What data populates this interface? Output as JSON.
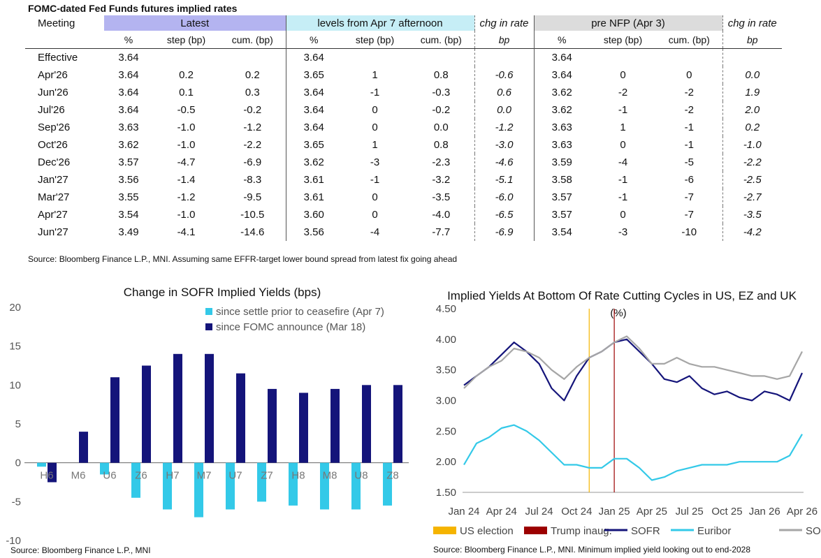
{
  "table": {
    "title": "FOMC-dated Fed Funds futures implied rates",
    "group_headers": {
      "meeting": "Meeting",
      "latest": "Latest",
      "levels": "levels from Apr 7 afternoon",
      "chg1": "chg in rate",
      "pre": "pre NFP (Apr 3)",
      "chg2": "chg in rate"
    },
    "sub_headers": [
      "%",
      "step (bp)",
      "cum. (bp)",
      "%",
      "step (bp)",
      "cum. (bp)",
      "bp",
      "%",
      "step (bp)",
      "cum. (bp)",
      "bp"
    ],
    "rows": [
      [
        "Effective",
        "3.64",
        "",
        "",
        "3.64",
        "",
        "",
        "",
        "3.64",
        "",
        "",
        ""
      ],
      [
        "Apr'26",
        "3.64",
        "0.2",
        "0.2",
        "3.65",
        "1",
        "0.8",
        "-0.6",
        "3.64",
        "0",
        "0",
        "0.0"
      ],
      [
        "Jun'26",
        "3.64",
        "0.1",
        "0.3",
        "3.64",
        "-1",
        "-0.3",
        "0.6",
        "3.62",
        "-2",
        "-2",
        "1.9"
      ],
      [
        "Jul'26",
        "3.64",
        "-0.5",
        "-0.2",
        "3.64",
        "0",
        "-0.2",
        "0.0",
        "3.62",
        "-1",
        "-2",
        "2.0"
      ],
      [
        "Sep'26",
        "3.63",
        "-1.0",
        "-1.2",
        "3.64",
        "0",
        "0.0",
        "-1.2",
        "3.63",
        "1",
        "-1",
        "0.2"
      ],
      [
        "Oct'26",
        "3.62",
        "-1.0",
        "-2.2",
        "3.65",
        "1",
        "0.8",
        "-3.0",
        "3.63",
        "0",
        "-1",
        "-1.0"
      ],
      [
        "Dec'26",
        "3.57",
        "-4.7",
        "-6.9",
        "3.62",
        "-3",
        "-2.3",
        "-4.6",
        "3.59",
        "-4",
        "-5",
        "-2.2"
      ],
      [
        "Jan'27",
        "3.56",
        "-1.4",
        "-8.3",
        "3.61",
        "-1",
        "-3.2",
        "-5.1",
        "3.58",
        "-1",
        "-6",
        "-2.5"
      ],
      [
        "Mar'27",
        "3.55",
        "-1.2",
        "-9.5",
        "3.61",
        "0",
        "-3.5",
        "-6.0",
        "3.57",
        "-1",
        "-7",
        "-2.7"
      ],
      [
        "Apr'27",
        "3.54",
        "-1.0",
        "-10.5",
        "3.60",
        "0",
        "-4.0",
        "-6.5",
        "3.57",
        "0",
        "-7",
        "-3.5"
      ],
      [
        "Jun'27",
        "3.49",
        "-4.1",
        "-14.6",
        "3.56",
        "-4",
        "-7.7",
        "-6.9",
        "3.54",
        "-3",
        "-10",
        "-4.2"
      ]
    ],
    "source": "Source: Bloomberg Finance L.P., MNI. Assuming same  EFFR-target lower bound spread from latest fix going ahead"
  },
  "chart_data": [
    {
      "type": "bar",
      "title": "Change in SOFR Implied Yields (bps)",
      "categories": [
        "H6",
        "M6",
        "U6",
        "Z6",
        "H7",
        "M7",
        "U7",
        "Z7",
        "H8",
        "M8",
        "U8",
        "Z8"
      ],
      "series": [
        {
          "name": "since settle prior to ceasefire (Apr 7)",
          "color": "#33c9e8",
          "values": [
            -0.5,
            0,
            -1.5,
            -4.5,
            -6,
            -7,
            -6,
            -5,
            -5.5,
            -6,
            -6,
            -5.5
          ]
        },
        {
          "name": "since FOMC announce (Mar 18)",
          "color": "#14147a",
          "values": [
            -2.5,
            4,
            11,
            12.5,
            14,
            14,
            11.5,
            9.5,
            9,
            9.5,
            10,
            10
          ]
        }
      ],
      "yticks": [
        "20",
        "15",
        "10",
        "5",
        "0",
        "-5",
        "-10"
      ],
      "ylim": [
        -10,
        20
      ],
      "legend": "top-right",
      "source": "Source: Bloomberg Finance L.P., MNI"
    },
    {
      "type": "line",
      "title": "Implied Yields At Bottom Of Rate Cutting Cycles in US, EZ and UK",
      "ylabel": "(%)",
      "yticks": [
        "4.50",
        "4.00",
        "3.50",
        "3.00",
        "2.50",
        "2.00",
        "1.50"
      ],
      "ylim": [
        1.5,
        4.5
      ],
      "xticks": [
        "Jan 24",
        "Apr 24",
        "Jul 24",
        "Oct 24",
        "Jan 25",
        "Apr 25",
        "Jul 25",
        "Oct 25",
        "Jan 26",
        "Apr 26"
      ],
      "x": [
        "Jan 24",
        "Feb 24",
        "Mar 24",
        "Apr 24",
        "May 24",
        "Jun 24",
        "Jul 24",
        "Aug 24",
        "Sep 24",
        "Oct 24",
        "Nov 24",
        "Dec 24",
        "Jan 25",
        "Feb 25",
        "Mar 25",
        "Apr 25",
        "May 25",
        "Jun 25",
        "Jul 25",
        "Aug 25",
        "Sep 25",
        "Oct 25",
        "Nov 25",
        "Dec 25",
        "Jan 26",
        "Feb 26",
        "Mar 26",
        "Apr 26"
      ],
      "series": [
        {
          "name": "SOFR",
          "color": "#14147a",
          "values": [
            3.25,
            3.4,
            3.55,
            3.75,
            3.95,
            3.8,
            3.6,
            3.2,
            3.0,
            3.4,
            3.7,
            3.8,
            3.95,
            4.0,
            3.8,
            3.6,
            3.35,
            3.3,
            3.4,
            3.2,
            3.1,
            3.15,
            3.05,
            3.0,
            3.15,
            3.1,
            3.0,
            3.45
          ]
        },
        {
          "name": "Euribor",
          "color": "#33c9e8",
          "values": [
            1.95,
            2.3,
            2.4,
            2.55,
            2.6,
            2.5,
            2.35,
            2.15,
            1.95,
            1.95,
            1.9,
            1.9,
            2.05,
            2.05,
            1.9,
            1.7,
            1.75,
            1.85,
            1.9,
            1.95,
            1.95,
            1.95,
            2.0,
            2.0,
            2.0,
            2.0,
            2.1,
            2.45
          ]
        },
        {
          "name": "SONIA",
          "color": "#a6a6a6",
          "values": [
            3.2,
            3.4,
            3.55,
            3.65,
            3.85,
            3.8,
            3.7,
            3.5,
            3.35,
            3.55,
            3.7,
            3.8,
            3.95,
            4.05,
            3.85,
            3.6,
            3.6,
            3.7,
            3.6,
            3.55,
            3.55,
            3.5,
            3.45,
            3.4,
            3.4,
            3.35,
            3.4,
            3.8
          ]
        }
      ],
      "markers": [
        {
          "name": "US election",
          "x": "Nov 24",
          "color": "#f5b400"
        },
        {
          "name": "Trump inaug.",
          "x": "Jan 25",
          "color": "#9c0000"
        }
      ],
      "legend": "bottom",
      "source": "Source: Bloomberg Finance L.P., MNI. Minimum implied yield looking out to end-2028"
    }
  ]
}
